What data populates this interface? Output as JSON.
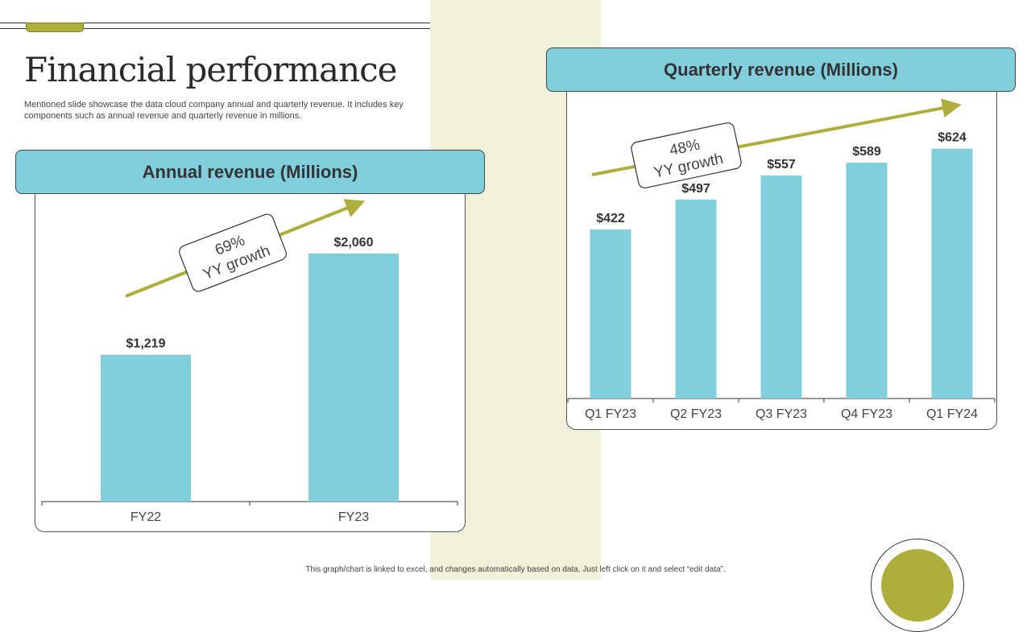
{
  "page": {
    "title": "Financial performance",
    "subtitle": "Mentioned slide showcase the data cloud company annual and quarterly revenue. It includes key components such as annual revenue and quarterly revenue in millions.",
    "footnote": "This graph/chart is linked to excel, and changes automatically based on data. Just left click on it and select “edit data”."
  },
  "annual": {
    "header": "Annual revenue (Millions)",
    "growth_pct": "69%",
    "growth_label": "YY growth"
  },
  "quarterly": {
    "header": "Quarterly revenue (Millions)",
    "growth_pct": "48%",
    "growth_label": "YY growth"
  },
  "colors": {
    "bar": "#81cedd",
    "accent": "#aeae3c",
    "text": "#333333"
  },
  "chart_data": [
    {
      "type": "bar",
      "title": "Annual revenue (Millions)",
      "categories": [
        "FY22",
        "FY23"
      ],
      "values": [
        1219,
        2060
      ],
      "data_labels": [
        "$1,219",
        "$2,060"
      ],
      "ylim": [
        0,
        2400
      ],
      "grid": false,
      "annotation": "69% YY growth"
    },
    {
      "type": "bar",
      "title": "Quarterly revenue (Millions)",
      "categories": [
        "Q1 FY23",
        "Q2 FY23",
        "Q3 FY23",
        "Q4 FY23",
        "Q1 FY24"
      ],
      "values": [
        422,
        497,
        557,
        589,
        624
      ],
      "data_labels": [
        "$422",
        "$497",
        "$557",
        "$589",
        "$624"
      ],
      "ylim": [
        0,
        750
      ],
      "grid": false,
      "annotation": "48% YY growth"
    }
  ]
}
